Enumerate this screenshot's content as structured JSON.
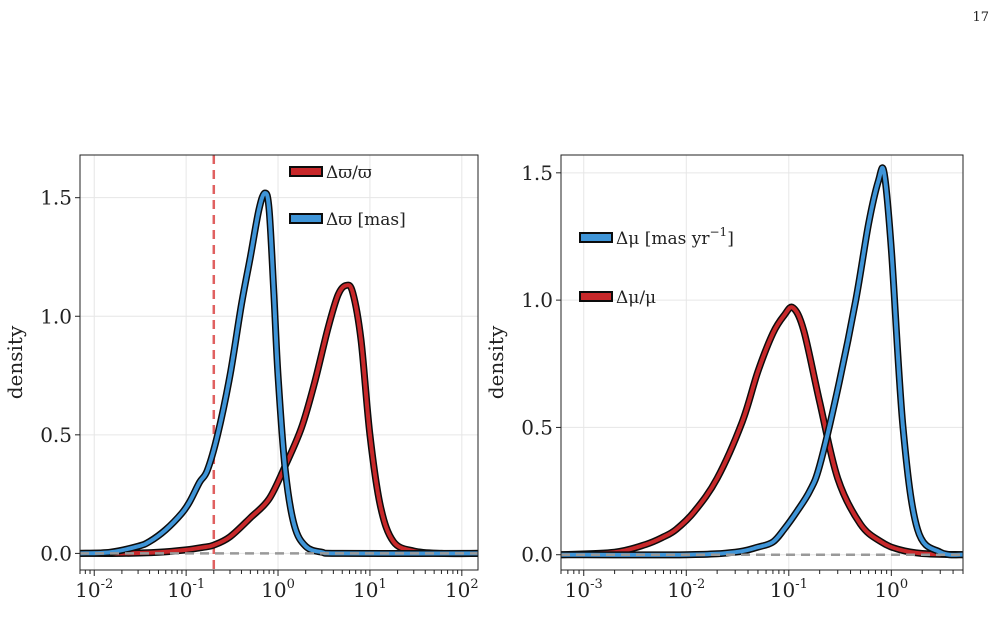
{
  "page": {
    "number": "17"
  },
  "colors": {
    "red": "#c8282a",
    "blue": "#3f95d8",
    "outline": "#0c0c0c",
    "threshold": "#e06060",
    "baseline": "#999999",
    "grid": "#e6e6e6"
  },
  "chart_data": [
    {
      "id": "left",
      "type": "line",
      "xscale": "log",
      "xlim": [
        0.007,
        150
      ],
      "ylim": [
        -0.07,
        1.68
      ],
      "xticks": [
        0.01,
        0.1,
        1,
        10,
        100
      ],
      "xtick_labels": [
        {
          "base": "10",
          "exp": "-2"
        },
        {
          "base": "10",
          "exp": "-1"
        },
        {
          "base": "10",
          "exp": "0"
        },
        {
          "base": "10",
          "exp": "1"
        },
        {
          "base": "10",
          "exp": "2"
        }
      ],
      "yticks": [
        0.0,
        0.5,
        1.0,
        1.5
      ],
      "ytick_labels": [
        "0.0",
        "0.5",
        "1.0",
        "1.5"
      ],
      "xlabel": "",
      "ylabel": "density",
      "grid": true,
      "threshold_x": 0.2,
      "legend": [
        {
          "name": "Δϖ/ϖ",
          "color": "#c8282a",
          "sup": ""
        },
        {
          "name": "Δϖ [mas]",
          "color": "#3f95d8",
          "sup": ""
        }
      ],
      "series": [
        {
          "name": "Δϖ/ϖ",
          "color": "#c8282a",
          "x": [
            0.007,
            0.02,
            0.05,
            0.1,
            0.15,
            0.2,
            0.3,
            0.5,
            0.8,
            1.2,
            1.8,
            2.5,
            3.5,
            4.5,
            5.5,
            6.5,
            8,
            10,
            13,
            18,
            30,
            60,
            150
          ],
          "y": [
            0.0,
            0.0,
            0.005,
            0.015,
            0.025,
            0.035,
            0.07,
            0.15,
            0.23,
            0.37,
            0.53,
            0.72,
            0.95,
            1.09,
            1.13,
            1.1,
            0.9,
            0.5,
            0.2,
            0.05,
            0.01,
            0.0,
            0.0
          ]
        },
        {
          "name": "Δϖ [mas]",
          "color": "#3f95d8",
          "x": [
            0.007,
            0.015,
            0.03,
            0.04,
            0.06,
            0.09,
            0.11,
            0.14,
            0.17,
            0.22,
            0.3,
            0.4,
            0.5,
            0.62,
            0.72,
            0.8,
            0.9,
            1.0,
            1.2,
            1.5,
            2.0,
            3.0,
            5.0,
            150
          ],
          "y": [
            0.0,
            0.005,
            0.03,
            0.05,
            0.1,
            0.17,
            0.22,
            0.3,
            0.35,
            0.5,
            0.75,
            1.05,
            1.25,
            1.45,
            1.52,
            1.45,
            1.1,
            0.75,
            0.35,
            0.12,
            0.03,
            0.005,
            0.0,
            0.0
          ]
        }
      ]
    },
    {
      "id": "right",
      "type": "line",
      "xscale": "log",
      "xlim": [
        0.0006,
        5
      ],
      "ylim": [
        -0.06,
        1.57
      ],
      "xticks": [
        0.001,
        0.01,
        0.1,
        1
      ],
      "xtick_labels": [
        {
          "base": "10",
          "exp": "-3"
        },
        {
          "base": "10",
          "exp": "-2"
        },
        {
          "base": "10",
          "exp": "-1"
        },
        {
          "base": "10",
          "exp": "0"
        }
      ],
      "yticks": [
        0.0,
        0.5,
        1.0,
        1.5
      ],
      "ytick_labels": [
        "0.0",
        "0.5",
        "1.0",
        "1.5"
      ],
      "xlabel": "",
      "ylabel": "density",
      "grid": true,
      "legend": [
        {
          "name": "Δμ [mas yr",
          "color": "#3f95d8",
          "sup": "−1",
          "suffix": "]"
        },
        {
          "name": "Δμ/μ",
          "color": "#c8282a",
          "sup": ""
        }
      ],
      "series": [
        {
          "name": "Δμ/μ",
          "color": "#c8282a",
          "x": [
            0.0006,
            0.002,
            0.004,
            0.006,
            0.008,
            0.012,
            0.02,
            0.035,
            0.05,
            0.07,
            0.09,
            0.11,
            0.14,
            0.2,
            0.3,
            0.5,
            0.8,
            1.2,
            2,
            5
          ],
          "y": [
            0.0,
            0.01,
            0.04,
            0.07,
            0.1,
            0.17,
            0.3,
            0.52,
            0.72,
            0.87,
            0.94,
            0.97,
            0.88,
            0.6,
            0.3,
            0.12,
            0.05,
            0.02,
            0.005,
            0.0
          ]
        },
        {
          "name": "Δμ [mas yr−1]",
          "color": "#3f95d8",
          "x": [
            0.0006,
            0.01,
            0.03,
            0.05,
            0.07,
            0.09,
            0.12,
            0.16,
            0.2,
            0.3,
            0.45,
            0.6,
            0.75,
            0.85,
            1.0,
            1.3,
            1.8,
            3,
            5
          ],
          "y": [
            0.0,
            0.0,
            0.01,
            0.03,
            0.05,
            0.1,
            0.17,
            0.25,
            0.35,
            0.65,
            1.0,
            1.3,
            1.47,
            1.5,
            1.2,
            0.5,
            0.1,
            0.01,
            0.0
          ]
        }
      ]
    }
  ]
}
